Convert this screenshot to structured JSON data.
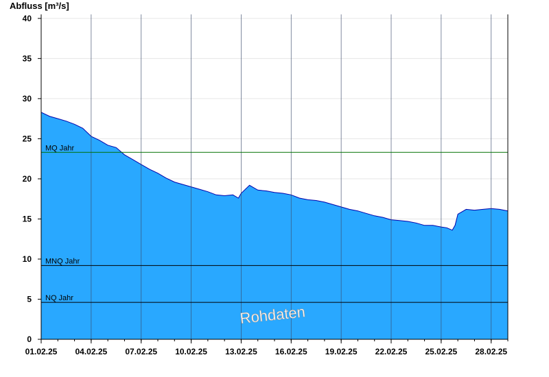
{
  "chart_data": {
    "type": "area",
    "ylabel": "Abfluss [m³/s]",
    "xlabel": "",
    "ylim": [
      0,
      40.5
    ],
    "yticks": [
      0,
      5,
      10,
      15,
      20,
      25,
      30,
      35,
      40
    ],
    "xlim": [
      "2025-02-01",
      "2025-02-28T23:59"
    ],
    "xtick_dates": [
      "2025-02-01",
      "2025-02-04",
      "2025-02-07",
      "2025-02-10",
      "2025-02-13",
      "2025-02-16",
      "2025-02-19",
      "2025-02-22",
      "2025-02-25",
      "2025-02-28"
    ],
    "xtick_labels": [
      "01.02.25",
      "04.02.25",
      "07.02.25",
      "10.02.25",
      "13.02.25",
      "16.02.25",
      "19.02.25",
      "22.02.25",
      "25.02.25",
      "28.02.25"
    ],
    "grid": true,
    "colors": {
      "fill": "#29a8ff",
      "line": "#0000aa",
      "mq": "#007000",
      "ref": "#000000",
      "grid": "#e6e6e6"
    },
    "series": [
      {
        "x": [
          "2025-02-01T00:00",
          "2025-02-01T12:00",
          "2025-02-02T00:00",
          "2025-02-02T12:00",
          "2025-02-03T00:00",
          "2025-02-03T12:00",
          "2025-02-04T00:00",
          "2025-02-04T12:00",
          "2025-02-05T00:00",
          "2025-02-05T12:00",
          "2025-02-06T00:00",
          "2025-02-06T12:00",
          "2025-02-07T00:00",
          "2025-02-07T12:00",
          "2025-02-08T00:00",
          "2025-02-08T12:00",
          "2025-02-09T00:00",
          "2025-02-09T12:00",
          "2025-02-10T00:00",
          "2025-02-10T12:00",
          "2025-02-11T00:00",
          "2025-02-11T12:00",
          "2025-02-12T00:00",
          "2025-02-12T12:00",
          "2025-02-12T20:00",
          "2025-02-13T00:00",
          "2025-02-13T12:00",
          "2025-02-14T00:00",
          "2025-02-14T12:00",
          "2025-02-15T00:00",
          "2025-02-15T12:00",
          "2025-02-16T00:00",
          "2025-02-16T12:00",
          "2025-02-17T00:00",
          "2025-02-17T12:00",
          "2025-02-18T00:00",
          "2025-02-18T12:00",
          "2025-02-19T00:00",
          "2025-02-19T12:00",
          "2025-02-20T00:00",
          "2025-02-20T12:00",
          "2025-02-21T00:00",
          "2025-02-21T12:00",
          "2025-02-22T00:00",
          "2025-02-22T12:00",
          "2025-02-23T00:00",
          "2025-02-23T12:00",
          "2025-02-24T00:00",
          "2025-02-24T12:00",
          "2025-02-25T00:00",
          "2025-02-25T08:00",
          "2025-02-25T16:00",
          "2025-02-25T20:00",
          "2025-02-26T00:00",
          "2025-02-26T12:00",
          "2025-02-27T00:00",
          "2025-02-27T12:00",
          "2025-02-28T00:00",
          "2025-02-28T12:00",
          "2025-02-28T23:59"
        ],
        "y": [
          28.3,
          27.8,
          27.5,
          27.2,
          26.8,
          26.3,
          25.3,
          24.8,
          24.2,
          23.9,
          23.0,
          22.4,
          21.8,
          21.2,
          20.7,
          20.1,
          19.6,
          19.3,
          19.0,
          18.7,
          18.4,
          18.0,
          17.9,
          18.0,
          17.6,
          18.2,
          19.2,
          18.6,
          18.5,
          18.3,
          18.2,
          18.0,
          17.6,
          17.4,
          17.3,
          17.1,
          16.8,
          16.5,
          16.2,
          16.0,
          15.7,
          15.4,
          15.2,
          14.9,
          14.8,
          14.7,
          14.5,
          14.2,
          14.2,
          14.0,
          13.9,
          13.6,
          14.2,
          15.6,
          16.2,
          16.1,
          16.2,
          16.3,
          16.2,
          16.0
        ]
      }
    ],
    "reference_lines": [
      {
        "label": "MQ Jahr",
        "value": 23.3
      },
      {
        "label": "MNQ Jahr",
        "value": 9.2
      },
      {
        "label": "NQ Jahr",
        "value": 4.6
      }
    ],
    "watermark": "Rohdaten"
  }
}
